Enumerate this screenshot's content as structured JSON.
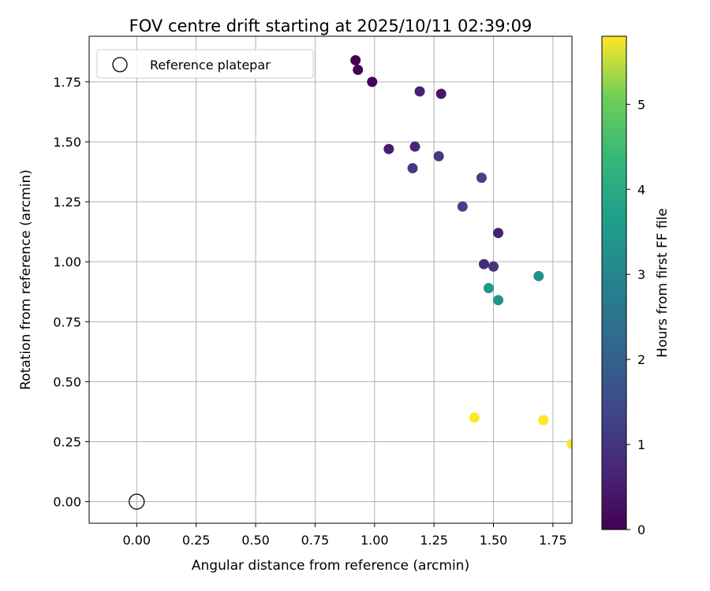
{
  "chart_data": {
    "type": "scatter",
    "title": "FOV centre drift starting at 2025/10/11 02:39:09",
    "xlabel": "Angular distance from reference (arcmin)",
    "ylabel": "Rotation from reference (arcmin)",
    "xlim": [
      -0.2,
      1.83
    ],
    "ylim": [
      -0.09,
      1.94
    ],
    "xticks": [
      "0.00",
      "0.25",
      "0.50",
      "0.75",
      "1.00",
      "1.25",
      "1.50",
      "1.75"
    ],
    "yticks": [
      "0.00",
      "0.25",
      "0.50",
      "0.75",
      "1.00",
      "1.25",
      "1.50",
      "1.75"
    ],
    "grid": true,
    "legend": {
      "position": "top-left",
      "label": "Reference platepar"
    },
    "reference_point": {
      "x": 0.0,
      "y": 0.0
    },
    "colorbar": {
      "label": "Hours from first FF file",
      "range": [
        0,
        5.8
      ],
      "ticks": [
        "0",
        "1",
        "2",
        "3",
        "4",
        "5"
      ],
      "colormap": "viridis"
    },
    "points": [
      {
        "x": 0.92,
        "y": 1.84,
        "hours": 0.0
      },
      {
        "x": 0.93,
        "y": 1.8,
        "hours": 0.05
      },
      {
        "x": 0.99,
        "y": 1.75,
        "hours": 0.1
      },
      {
        "x": 1.19,
        "y": 1.71,
        "hours": 0.6
      },
      {
        "x": 1.28,
        "y": 1.7,
        "hours": 0.4
      },
      {
        "x": 1.06,
        "y": 1.47,
        "hours": 0.5
      },
      {
        "x": 1.17,
        "y": 1.48,
        "hours": 0.75
      },
      {
        "x": 1.27,
        "y": 1.44,
        "hours": 1.1
      },
      {
        "x": 1.16,
        "y": 1.39,
        "hours": 1.1
      },
      {
        "x": 1.45,
        "y": 1.35,
        "hours": 1.25
      },
      {
        "x": 1.37,
        "y": 1.23,
        "hours": 1.3
      },
      {
        "x": 1.52,
        "y": 1.12,
        "hours": 0.6
      },
      {
        "x": 1.46,
        "y": 0.99,
        "hours": 0.8
      },
      {
        "x": 1.5,
        "y": 0.98,
        "hours": 1.0
      },
      {
        "x": 1.69,
        "y": 0.94,
        "hours": 3.3
      },
      {
        "x": 1.48,
        "y": 0.89,
        "hours": 3.5
      },
      {
        "x": 1.52,
        "y": 0.84,
        "hours": 3.4
      },
      {
        "x": 1.42,
        "y": 0.35,
        "hours": 5.8
      },
      {
        "x": 1.71,
        "y": 0.34,
        "hours": 5.8
      },
      {
        "x": 1.83,
        "y": 0.24,
        "hours": 5.8
      }
    ]
  }
}
